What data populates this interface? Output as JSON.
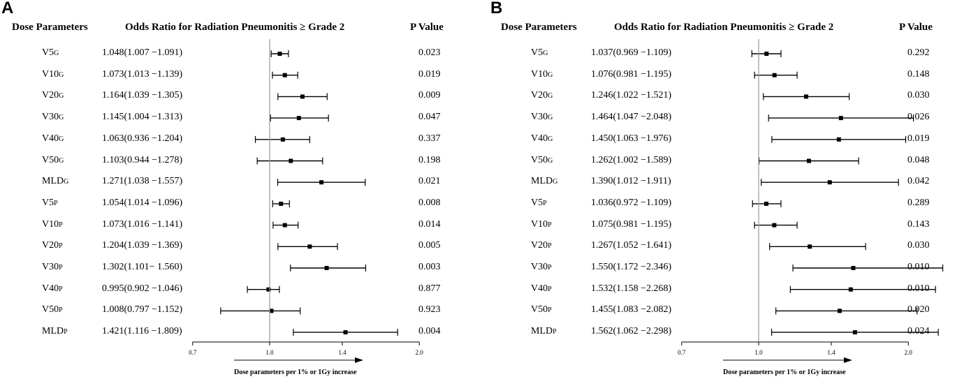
{
  "chart_data": [
    {
      "type": "forest",
      "panel_label": "A",
      "headers": {
        "dose": "Dose Parameters",
        "or": "Odds Ratio for Radiation Pneumonitis ≥ Grade 2",
        "p": "P Value"
      },
      "xlim": [
        0.7,
        2.0
      ],
      "ticks": [
        "0.7",
        "1.0",
        "1.4",
        "2.0"
      ],
      "reference_line": 1.0,
      "xlabel": "Dose parameters per 1% or 1Gy increase",
      "rows": [
        {
          "name": "V5",
          "sub": "G",
          "ci_text": "1.048(1.007 −1.091)",
          "or": 1.048,
          "lo": 1.007,
          "hi": 1.091,
          "p": "0.023"
        },
        {
          "name": "V10",
          "sub": "G",
          "ci_text": "1.073(1.013 −1.139)",
          "or": 1.073,
          "lo": 1.013,
          "hi": 1.139,
          "p": "0.019"
        },
        {
          "name": "V20",
          "sub": "G",
          "ci_text": "1.164(1.039 −1.305)",
          "or": 1.164,
          "lo": 1.039,
          "hi": 1.305,
          "p": "0.009"
        },
        {
          "name": "V30",
          "sub": "G",
          "ci_text": "1.145(1.004 −1.313)",
          "or": 1.145,
          "lo": 1.004,
          "hi": 1.313,
          "p": "0.047"
        },
        {
          "name": "V40",
          "sub": "G",
          "ci_text": "1.063(0.936 −1.204)",
          "or": 1.063,
          "lo": 0.936,
          "hi": 1.204,
          "p": "0.337"
        },
        {
          "name": "V50",
          "sub": "G",
          "ci_text": "1.103(0.944 −1.278)",
          "or": 1.103,
          "lo": 0.944,
          "hi": 1.278,
          "p": "0.198"
        },
        {
          "name": "MLD",
          "sub": "G",
          "ci_text": "1.271(1.038 −1.557)",
          "or": 1.271,
          "lo": 1.038,
          "hi": 1.557,
          "p": "0.021"
        },
        {
          "name": "V5",
          "sub": "P",
          "ci_text": "1.054(1.014 −1.096)",
          "or": 1.054,
          "lo": 1.014,
          "hi": 1.096,
          "p": "0.008"
        },
        {
          "name": "V10",
          "sub": "P",
          "ci_text": "1.073(1.016 −1.141)",
          "or": 1.073,
          "lo": 1.016,
          "hi": 1.141,
          "p": "0.014"
        },
        {
          "name": "V20",
          "sub": "P",
          "ci_text": "1.204(1.039 −1.369)",
          "or": 1.204,
          "lo": 1.039,
          "hi": 1.369,
          "p": "0.005"
        },
        {
          "name": "V30",
          "sub": "P",
          "ci_text": "1.302(1.101− 1.560)",
          "or": 1.302,
          "lo": 1.101,
          "hi": 1.56,
          "p": "0.003"
        },
        {
          "name": "V40",
          "sub": "P",
          "ci_text": "0.995(0.902 −1.046)",
          "or": 0.995,
          "lo": 0.902,
          "hi": 1.046,
          "p": "0.877"
        },
        {
          "name": "V50",
          "sub": "P",
          "ci_text": "1.008(0.797 −1.152)",
          "or": 1.008,
          "lo": 0.797,
          "hi": 1.152,
          "p": "0.923"
        },
        {
          "name": "MLD",
          "sub": "P",
          "ci_text": "1.421(1.116 −1.809)",
          "or": 1.421,
          "lo": 1.116,
          "hi": 1.809,
          "p": "0.004"
        }
      ]
    },
    {
      "type": "forest",
      "panel_label": "B",
      "headers": {
        "dose": "Dose Parameters",
        "or": "Odds Ratio for Radiation Pneumonitis ≥ Grade 2",
        "p": "P Value"
      },
      "xlim": [
        0.7,
        2.0
      ],
      "ticks": [
        "0.7",
        "1.0",
        "1.4",
        "2.0"
      ],
      "reference_line": 1.0,
      "xlabel": "Dose parameters per 1% or 1Gy increase",
      "rows": [
        {
          "name": "V5",
          "sub": "G",
          "ci_text": "1.037(0.969 −1.109)",
          "or": 1.037,
          "lo": 0.969,
          "hi": 1.109,
          "p": "0.292"
        },
        {
          "name": "V10",
          "sub": "G",
          "ci_text": "1.076(0.981 −1.195)",
          "or": 1.076,
          "lo": 0.981,
          "hi": 1.195,
          "p": "0.148"
        },
        {
          "name": "V20",
          "sub": "G",
          "ci_text": "1.246(1.022 −1.521)",
          "or": 1.246,
          "lo": 1.022,
          "hi": 1.521,
          "p": "0.030"
        },
        {
          "name": "V30",
          "sub": "G",
          "ci_text": "1.464(1.047 −2.048)",
          "or": 1.464,
          "lo": 1.047,
          "hi": 2.048,
          "p": "0.026"
        },
        {
          "name": "V40",
          "sub": "G",
          "ci_text": "1.450(1.063 −1.976)",
          "or": 1.45,
          "lo": 1.063,
          "hi": 1.976,
          "p": "0.019"
        },
        {
          "name": "V50",
          "sub": "G",
          "ci_text": "1.262(1.002 −1.589)",
          "or": 1.262,
          "lo": 1.002,
          "hi": 1.589,
          "p": "0.048"
        },
        {
          "name": "MLD",
          "sub": "G",
          "ci_text": "1.390(1.012 −1.911)",
          "or": 1.39,
          "lo": 1.012,
          "hi": 1.911,
          "p": "0.042"
        },
        {
          "name": "V5",
          "sub": "P",
          "ci_text": "1.036(0.972 −1.109)",
          "or": 1.036,
          "lo": 0.972,
          "hi": 1.109,
          "p": "0.289"
        },
        {
          "name": "V10",
          "sub": "P",
          "ci_text": "1.075(0.981 −1.195)",
          "or": 1.075,
          "lo": 0.981,
          "hi": 1.195,
          "p": "0.143"
        },
        {
          "name": "V20",
          "sub": "P",
          "ci_text": "1.267(1.052 −1.641)",
          "or": 1.267,
          "lo": 1.052,
          "hi": 1.641,
          "p": "0.030"
        },
        {
          "name": "V30",
          "sub": "P",
          "ci_text": "1.550(1.172 −2.346)",
          "or": 1.55,
          "lo": 1.172,
          "hi": 2.346,
          "p": "0.010"
        },
        {
          "name": "V40",
          "sub": "P",
          "ci_text": "1.532(1.158 −2.268)",
          "or": 1.532,
          "lo": 1.158,
          "hi": 2.268,
          "p": "0.010"
        },
        {
          "name": "V50",
          "sub": "P",
          "ci_text": "1.455(1.083 −2.082)",
          "or": 1.455,
          "lo": 1.083,
          "hi": 2.082,
          "p": "0.020"
        },
        {
          "name": "MLD",
          "sub": "P",
          "ci_text": "1.562(1.062 −2.298)",
          "or": 1.562,
          "lo": 1.062,
          "hi": 2.298,
          "p": "0.024"
        }
      ]
    }
  ]
}
